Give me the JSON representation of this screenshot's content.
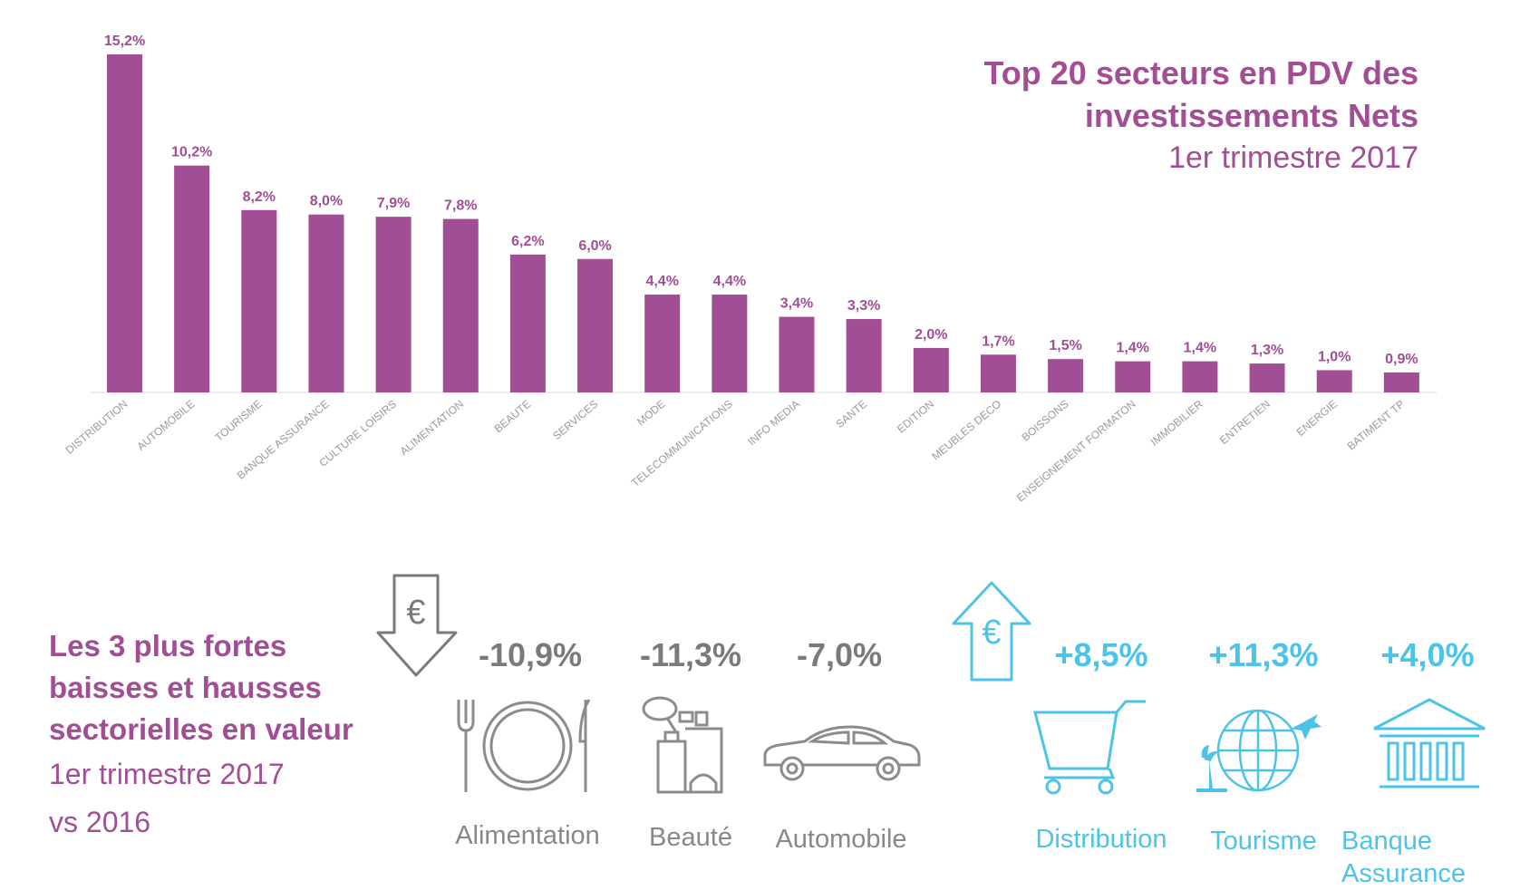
{
  "title": {
    "line1": "Top 20 secteurs en PDV des",
    "line2": "investissements Nets",
    "line3": "1er trimestre 2017"
  },
  "colors": {
    "bar": "#a24e95",
    "down": "#7a7a7a",
    "up": "#4ec3e8"
  },
  "chart_data": {
    "type": "bar",
    "categories": [
      "DISTRIBUTION",
      "AUTOMOBILE",
      "TOURISME",
      "BANQUE ASSURANCE",
      "CULTURE LOISIRS",
      "ALIMENTATION",
      "BEAUTE",
      "SERVICES",
      "MODE",
      "TELECOMMUNICATIONS",
      "INFO MEDIA",
      "SANTE",
      "EDITION",
      "MEUBLES DECO",
      "BOISSONS",
      "ENSEIGNEMENT FORMATON",
      "IMMOBILIER",
      "ENTRETIEN",
      "ENERGIE",
      "BATIMENT TP"
    ],
    "values": [
      15.2,
      10.2,
      8.2,
      8.0,
      7.9,
      7.8,
      6.2,
      6.0,
      4.4,
      4.4,
      3.4,
      3.3,
      2.0,
      1.7,
      1.5,
      1.4,
      1.4,
      1.3,
      1.0,
      0.9
    ],
    "value_labels": [
      "15,2%",
      "10,2%",
      "8,2%",
      "8,0%",
      "7,9%",
      "7,8%",
      "6,2%",
      "6,0%",
      "4,4%",
      "4,4%",
      "3,4%",
      "3,3%",
      "2,0%",
      "1,7%",
      "1,5%",
      "1,4%",
      "1,4%",
      "1,3%",
      "1,0%",
      "0,9%"
    ],
    "ylim": [
      0,
      15.2
    ],
    "grid": false
  },
  "summary": {
    "bold_lines": [
      "Les 3 plus fortes",
      "baisses et hausses",
      "sectorielles en valeur"
    ],
    "light_lines": [
      "1er trimestre 2017",
      "vs 2016"
    ]
  },
  "decreases": {
    "arrow_symbol": "€",
    "items": [
      {
        "value": "-10,9%",
        "label": "Alimentation",
        "icon": "plate-cutlery-icon"
      },
      {
        "value": "-11,3%",
        "label": "Beauté",
        "icon": "perfume-bottles-icon"
      },
      {
        "value": "-7,0%",
        "label": "Automobile",
        "icon": "car-icon"
      }
    ]
  },
  "increases": {
    "arrow_symbol": "€",
    "items": [
      {
        "value": "+8,5%",
        "label": "Distribution",
        "icon": "shopping-cart-icon"
      },
      {
        "value": "+11,3%",
        "label": "Tourisme",
        "icon": "globe-plane-icon"
      },
      {
        "value": "+4,0%",
        "label": "Banque",
        "label2": "Assurance",
        "icon": "bank-building-icon"
      }
    ]
  }
}
